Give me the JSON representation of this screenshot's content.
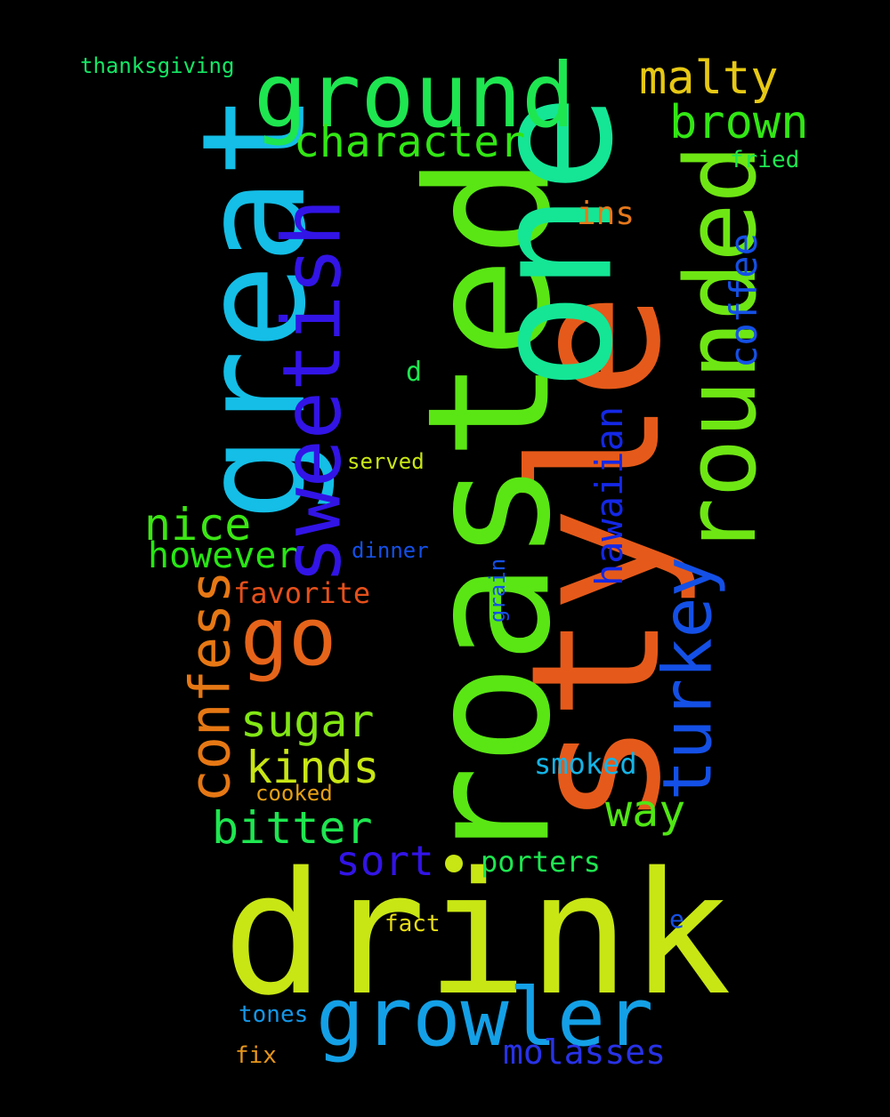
{
  "words": [
    {
      "text": "drink",
      "color": "#c8e614"
    },
    {
      "text": "style",
      "color": "#e55a1a"
    },
    {
      "text": "roasted",
      "color": "#5ae614"
    },
    {
      "text": "one",
      "color": "#14e696"
    },
    {
      "text": "great",
      "color": "#14bee6"
    },
    {
      "text": "ground",
      "color": "#1ee650"
    },
    {
      "text": "rounded",
      "color": "#6ee614"
    },
    {
      "text": "sweetish",
      "color": "#3214e6"
    },
    {
      "text": "growler",
      "color": "#14a0e6"
    },
    {
      "text": "go",
      "color": "#e6641a"
    },
    {
      "text": "turkey",
      "color": "#1450e6"
    },
    {
      "text": "confess",
      "color": "#e67814"
    },
    {
      "text": "character",
      "color": "#32e614"
    },
    {
      "text": "brown",
      "color": "#32e614"
    },
    {
      "text": "malty",
      "color": "#e6c814"
    },
    {
      "text": "coffee",
      "color": "#1450e6"
    },
    {
      "text": "hawaiian",
      "color": "#1428e6"
    },
    {
      "text": "nice",
      "color": "#3ce614"
    },
    {
      "text": "sugar",
      "color": "#82e614"
    },
    {
      "text": "kinds",
      "color": "#c8e614"
    },
    {
      "text": "bitter",
      "color": "#1ee650"
    },
    {
      "text": "however",
      "color": "#28e614"
    },
    {
      "text": "way",
      "color": "#50e614"
    },
    {
      "text": "sort",
      "color": "#3214e6"
    },
    {
      "text": "porters",
      "color": "#1ee650"
    },
    {
      "text": "molasses",
      "color": "#2832e6"
    },
    {
      "text": "favorite",
      "color": "#e6501a"
    },
    {
      "text": "ins",
      "color": "#e6781a"
    },
    {
      "text": "smoked",
      "color": "#14b4e6"
    },
    {
      "text": "thanksgiving",
      "color": "#14e664"
    },
    {
      "text": "fried",
      "color": "#1ee650"
    },
    {
      "text": "served",
      "color": "#c8e614"
    },
    {
      "text": "dinner",
      "color": "#1450e6"
    },
    {
      "text": "cooked",
      "color": "#e6a014"
    },
    {
      "text": "fact",
      "color": "#e6dc14"
    },
    {
      "text": "tones",
      "color": "#1496e6"
    },
    {
      "text": "fix",
      "color": "#e6961a"
    },
    {
      "text": "grain",
      "color": "#1450e6"
    },
    {
      "text": "d",
      "color": "#1ee650"
    },
    {
      "text": "e",
      "color": "#1450e6"
    }
  ],
  "dot_color": "#c8e614"
}
